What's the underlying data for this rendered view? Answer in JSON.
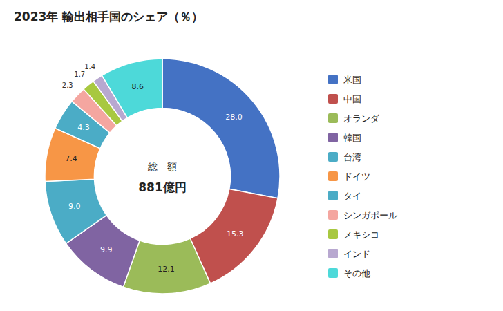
{
  "chart_data": {
    "type": "pie",
    "title": "2023年 輸出相手国のシェア（％）",
    "annotations": [
      "総　額",
      "881億円"
    ],
    "categories": [
      "米国",
      "中国",
      "オランダ",
      "韓国",
      "台湾",
      "ドイツ",
      "タイ",
      "シンガポール",
      "メキシコ",
      "インド",
      "その他"
    ],
    "values": [
      28.0,
      15.3,
      12.1,
      9.9,
      9.0,
      7.4,
      4.3,
      2.3,
      1.7,
      1.4,
      8.6
    ],
    "value_labels": [
      "28.0",
      "15.3",
      "12.1",
      "9.9",
      "9.0",
      "7.4",
      "4.3",
      "2.3",
      "1.7",
      "1.4",
      "8.6"
    ],
    "colors": [
      "#4472C4",
      "#C0504D",
      "#9BBB59",
      "#8064A2",
      "#4BACC6",
      "#F79646",
      "#4BACC6",
      "#F4A6A0",
      "#A8C840",
      "#B8A8D0",
      "#4DD9D9"
    ],
    "data_labels": true,
    "legend": "right"
  }
}
